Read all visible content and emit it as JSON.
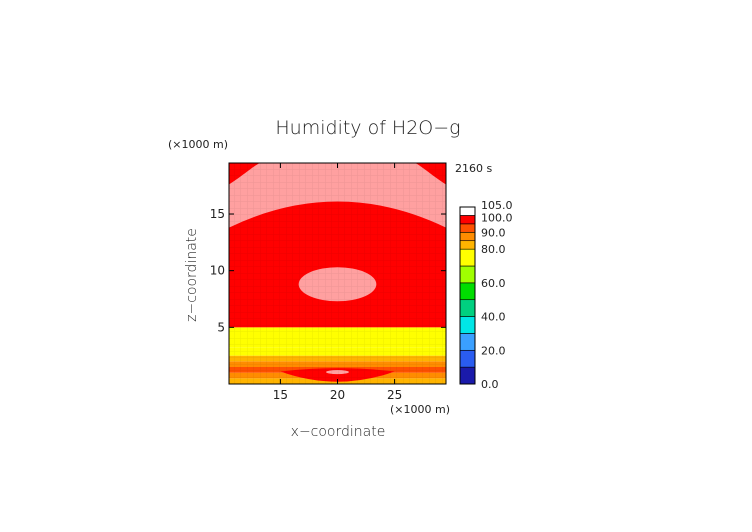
{
  "chart_data": {
    "type": "heatmap",
    "title": "Humidity of H2O−g",
    "timestamp": "2160 s",
    "xlabel": "x−coordinate",
    "ylabel": "z−coordinate",
    "x_unit": "(×1000 m)",
    "z_unit": "(×1000 m)",
    "xlim": [
      10.5,
      29.5
    ],
    "zlim": [
      0,
      19.5
    ],
    "x_ticks": [
      15,
      20,
      25
    ],
    "z_ticks": [
      5,
      10,
      15
    ],
    "x_tick_labels": [
      "15",
      "20",
      "25"
    ],
    "z_tick_labels": [
      "5",
      "10",
      "15"
    ],
    "colorbar": {
      "levels": [
        0,
        10,
        20,
        30,
        40,
        50,
        60,
        70,
        80,
        85,
        90,
        95,
        100,
        105
      ],
      "labels": [
        "0.0",
        "20.0",
        "40.0",
        "60.0",
        "80.0",
        "90.0",
        "100.0",
        "105.0"
      ],
      "label_values": [
        0,
        20,
        40,
        60,
        80,
        90,
        100,
        105
      ],
      "colors": [
        "#1a1aaa",
        "#2a5cf0",
        "#3aa0ff",
        "#00e6e6",
        "#00d080",
        "#00dd00",
        "#a0ff00",
        "#ffff00",
        "#ffb400",
        "#ff8c00",
        "#ff5000",
        "#ff0000",
        "#ffffff"
      ]
    },
    "bands": [
      {
        "z0": 0.0,
        "z1": 0.5,
        "value": 82
      },
      {
        "z0": 0.5,
        "z1": 1.0,
        "value": 87
      },
      {
        "z0": 1.0,
        "z1": 1.5,
        "value": 92
      },
      {
        "z0": 1.5,
        "z1": 2.0,
        "value": 87
      },
      {
        "z0": 2.0,
        "z1": 2.5,
        "value": 82
      },
      {
        "z0": 2.5,
        "z1": 3.2,
        "value": 76
      },
      {
        "z0": 3.2,
        "z1": 4.5,
        "value": 72
      },
      {
        "z0": 4.5,
        "z1": 5.0,
        "value": 76
      },
      {
        "z0": 5.0,
        "z1": 19.5,
        "value": 97
      }
    ],
    "regions": [
      {
        "shape": "dome",
        "value": 102,
        "z_bottom": 14.0,
        "z_peak": 16.1,
        "z_side": 13.8,
        "z_top": 19.5,
        "x_top_left": 13.2,
        "x_top_right": 26.8
      },
      {
        "shape": "ellipse",
        "value": 102,
        "x_center": 20.0,
        "z_center": 8.8,
        "x_radius": 3.4,
        "z_radius": 1.5
      },
      {
        "shape": "lens",
        "value": 97,
        "x_center": 20.0,
        "z_center": 1.1,
        "x_radius": 5.0,
        "z_up": 0.3,
        "z_down": 0.9
      },
      {
        "shape": "ellipse",
        "value": 102,
        "x_center": 20.0,
        "z_center": 1.05,
        "x_radius": 1.0,
        "z_radius": 0.18
      }
    ]
  }
}
